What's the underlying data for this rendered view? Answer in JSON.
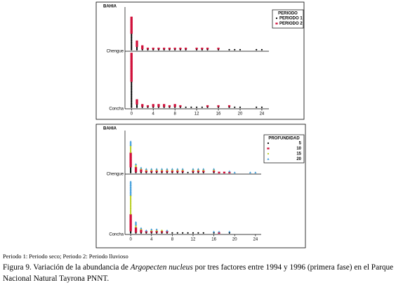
{
  "chart_data": [
    {
      "type": "dotplot",
      "y_label": "BAHIA",
      "legend": {
        "title": "PERIODO",
        "series": [
          {
            "name": "PERIODO 1",
            "color": "#000000",
            "marker": "circle"
          },
          {
            "name": "PERIODO 2",
            "color": "#d0103a",
            "marker": "square"
          }
        ]
      },
      "x": [
        0,
        1,
        2,
        3,
        4,
        5,
        6,
        7,
        8,
        9,
        10,
        11,
        12,
        13,
        14,
        15,
        16,
        17,
        18,
        19,
        20,
        21,
        22,
        23,
        24
      ],
      "xlim": [
        -1.2,
        25.3
      ],
      "xticks": [
        0,
        4,
        8,
        12,
        16,
        20,
        24
      ],
      "facets": [
        {
          "name": "Chengue",
          "values": [
            [
              14,
              3,
              1,
              1,
              1,
              1,
              1,
              1,
              1,
              1,
              1,
              0,
              1,
              1,
              1,
              0,
              1,
              0,
              1,
              1,
              1,
              0,
              0,
              1,
              1
            ],
            [
              14,
              5,
              3,
              1,
              1,
              1,
              1,
              1,
              1,
              1,
              1,
              0,
              1,
              1,
              1,
              0,
              1,
              0,
              0,
              0,
              0,
              0,
              0,
              0,
              0
            ]
          ]
        },
        {
          "name": "Concha",
          "values": [
            [
              22,
              3,
              1,
              1,
              1,
              1,
              1,
              1,
              1,
              1,
              1,
              1,
              1,
              1,
              1,
              0,
              1,
              0,
              1,
              1,
              1,
              0,
              0,
              1,
              1
            ],
            [
              24,
              4,
              2,
              1,
              2,
              2,
              2,
              1,
              2,
              1,
              0,
              0,
              0,
              0,
              1,
              0,
              1,
              0,
              1,
              0,
              0,
              0,
              0,
              0,
              0
            ]
          ]
        }
      ]
    },
    {
      "type": "dotplot",
      "y_label": "BAHIA",
      "legend": {
        "title": "PROFUNDIDAD",
        "series": [
          {
            "name": "5",
            "color": "#000000",
            "marker": "circle"
          },
          {
            "name": "10",
            "color": "#d0103a",
            "marker": "square"
          },
          {
            "name": "15",
            "color": "#b5cc18",
            "marker": "circle"
          },
          {
            "name": "20",
            "color": "#3a9ad9",
            "marker": "triangle"
          }
        ]
      },
      "x": [
        0,
        1,
        2,
        3,
        4,
        5,
        6,
        7,
        8,
        9,
        10,
        11,
        12,
        13,
        14,
        15,
        16,
        17,
        18,
        19,
        20,
        21,
        22,
        23,
        24
      ],
      "xlim": [
        -1.1,
        25.1
      ],
      "xticks": [
        0,
        4,
        8,
        12,
        16,
        20,
        24
      ],
      "facets": [
        {
          "name": "Chengue",
          "values": [
            [
              5,
              1,
              1,
              1,
              1,
              1,
              1,
              1,
              1,
              1,
              1,
              1,
              1,
              1,
              1,
              0,
              1,
              0,
              0,
              0,
              0,
              0,
              0,
              0,
              0
            ],
            [
              12,
              4,
              2,
              1,
              1,
              1,
              1,
              1,
              1,
              1,
              1,
              0,
              1,
              1,
              1,
              0,
              1,
              1,
              1,
              1,
              0,
              0,
              0,
              0,
              0
            ],
            [
              6,
              2,
              1,
              1,
              1,
              1,
              1,
              1,
              1,
              1,
              1,
              0,
              1,
              1,
              1,
              0,
              1,
              0,
              0,
              0,
              0,
              0,
              0,
              0,
              0
            ],
            [
              4,
              1,
              1,
              1,
              1,
              1,
              1,
              1,
              1,
              1,
              1,
              0,
              1,
              1,
              1,
              0,
              1,
              0,
              0,
              1,
              1,
              0,
              0,
              1,
              1
            ]
          ]
        },
        {
          "name": "Concha",
          "values": [
            [
              2,
              1,
              1,
              1,
              1,
              1,
              1,
              1,
              1,
              1,
              1,
              1,
              1,
              1,
              1,
              0,
              1,
              0,
              0,
              1,
              0,
              0,
              0,
              0,
              0
            ],
            [
              14,
              4,
              2,
              1,
              1,
              1,
              1,
              1,
              0,
              0,
              0,
              0,
              0,
              0,
              0,
              0,
              0,
              1,
              0,
              0,
              0,
              0,
              0,
              0,
              0
            ],
            [
              16,
              2,
              1,
              0,
              1,
              1,
              1,
              0,
              0,
              0,
              0,
              0,
              0,
              0,
              0,
              0,
              0,
              0,
              0,
              0,
              0,
              0,
              0,
              0,
              0
            ],
            [
              12,
              3,
              1,
              1,
              1,
              1,
              0,
              1,
              0,
              0,
              0,
              0,
              0,
              0,
              0,
              0,
              1,
              1,
              0,
              1,
              0,
              0,
              0,
              0,
              0
            ]
          ]
        }
      ]
    }
  ],
  "caption": {
    "note": "Periodo 1: Periodo seco; Periodo 2: Periodo lluvioso",
    "figure": [
      "Figura 9. Variación de la abundancia de ",
      "Argopecten nucleus",
      " por tres factores entre 1994 y 1996 (primera fase) en el Parque Nacional Natural Tayrona PNNT."
    ]
  }
}
